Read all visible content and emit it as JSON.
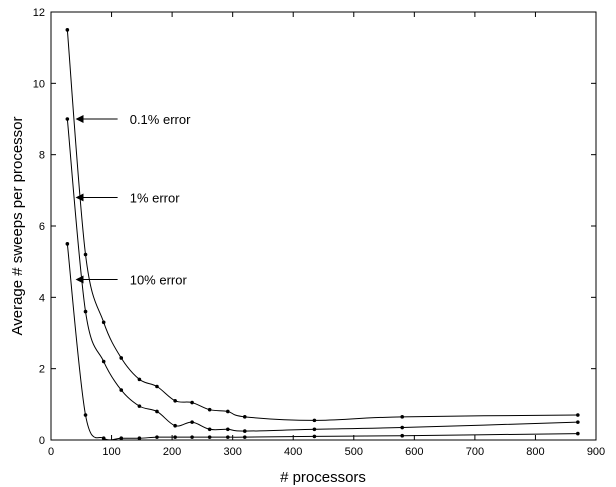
{
  "chart_data": {
    "type": "line",
    "title": "",
    "xlabel": "# processors",
    "ylabel": "Average # sweeps per processor",
    "xlim": [
      0,
      900
    ],
    "ylim": [
      0,
      12
    ],
    "xticks": [
      "0",
      "100",
      "200",
      "300",
      "400",
      "500",
      "600",
      "700",
      "800",
      "900"
    ],
    "yticks": [
      "0",
      "2",
      "4",
      "6",
      "8",
      "10",
      "12"
    ],
    "grid": false,
    "line_color": "#000000",
    "series": [
      {
        "label": "0.1% error",
        "points": [
          [
            27,
            11.5
          ],
          [
            57,
            5.2
          ],
          [
            87,
            3.3
          ],
          [
            116,
            2.3
          ],
          [
            146,
            1.7
          ],
          [
            175,
            1.5
          ],
          [
            205,
            1.1
          ],
          [
            233,
            1.05
          ],
          [
            262,
            0.85
          ],
          [
            292,
            0.8
          ],
          [
            320,
            0.65
          ],
          [
            435,
            0.55
          ],
          [
            580,
            0.65
          ],
          [
            870,
            0.7
          ]
        ]
      },
      {
        "label": "1% error",
        "points": [
          [
            27,
            9.0
          ],
          [
            57,
            3.6
          ],
          [
            87,
            2.2
          ],
          [
            116,
            1.4
          ],
          [
            146,
            0.95
          ],
          [
            175,
            0.8
          ],
          [
            205,
            0.4
          ],
          [
            233,
            0.5
          ],
          [
            262,
            0.3
          ],
          [
            292,
            0.3
          ],
          [
            320,
            0.25
          ],
          [
            435,
            0.3
          ],
          [
            580,
            0.35
          ],
          [
            870,
            0.5
          ]
        ]
      },
      {
        "label": "10% error",
        "points": [
          [
            27,
            5.5
          ],
          [
            57,
            0.7
          ],
          [
            87,
            0.05
          ],
          [
            116,
            0.05
          ],
          [
            146,
            0.05
          ],
          [
            175,
            0.08
          ],
          [
            205,
            0.08
          ],
          [
            233,
            0.08
          ],
          [
            262,
            0.08
          ],
          [
            292,
            0.08
          ],
          [
            320,
            0.08
          ],
          [
            435,
            0.1
          ],
          [
            580,
            0.12
          ],
          [
            870,
            0.18
          ]
        ]
      }
    ],
    "annotations": [
      {
        "text": "0.1% error",
        "arrow_to": [
          29,
          9.0
        ],
        "text_at": [
          130,
          9.0
        ]
      },
      {
        "text": "1% error",
        "arrow_to": [
          29,
          6.8
        ],
        "text_at": [
          130,
          6.8
        ]
      },
      {
        "text": "10% error",
        "arrow_to": [
          29,
          4.5
        ],
        "text_at": [
          130,
          4.5
        ]
      }
    ]
  }
}
